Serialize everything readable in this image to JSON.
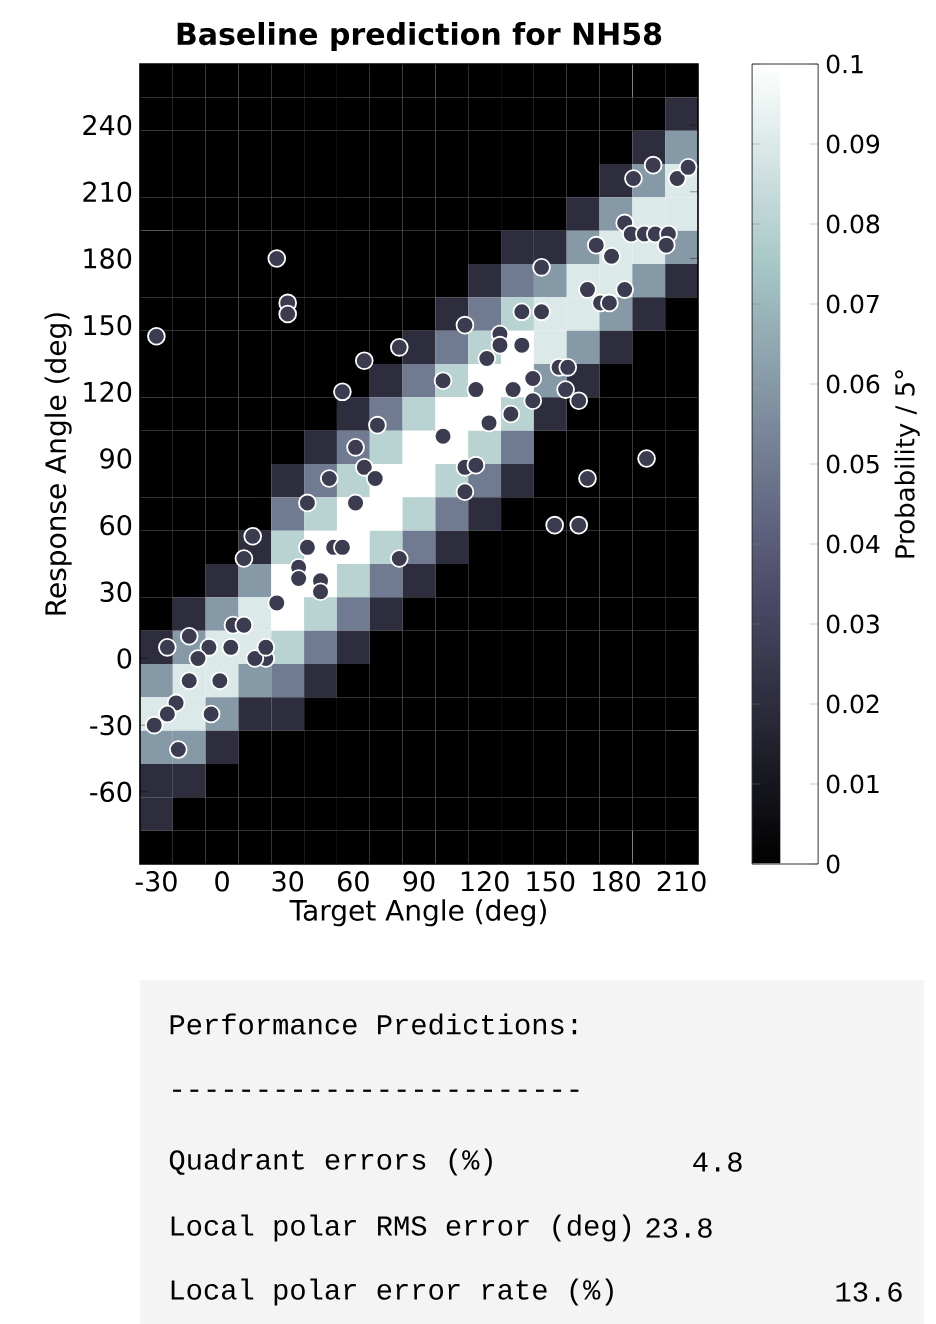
{
  "chart_data": [
    {
      "type": "heatmap",
      "clabel": "Probability / 5°",
      "categories": [
        null,
        null,
        null,
        null,
        null,
        null,
        null,
        null,
        null,
        null,
        null,
        null,
        null,
        null,
        null,
        null,
        null
      ],
      "y_categories": [
        null,
        null,
        null,
        null,
        null,
        null,
        null,
        null,
        null,
        null,
        null,
        null,
        null,
        null,
        null,
        null,
        null,
        null,
        null,
        null,
        null,
        null,
        null,
        null
      ],
      "cells": [
        [
          0,
          0,
          0,
          0,
          0,
          0,
          0,
          0,
          0,
          0,
          0,
          0,
          0,
          0,
          0,
          0,
          0
        ],
        [
          0,
          0,
          0,
          0,
          0,
          0,
          0,
          0,
          0,
          0,
          0,
          0,
          0,
          0,
          0,
          0,
          0.02
        ],
        [
          0,
          0,
          0,
          0,
          0,
          0,
          0,
          0,
          0,
          0,
          0,
          0,
          0,
          0,
          0,
          0.02,
          0.06
        ],
        [
          0,
          0,
          0,
          0,
          0,
          0,
          0,
          0,
          0,
          0,
          0,
          0,
          0,
          0,
          0.02,
          0.06,
          0.09
        ],
        [
          0,
          0,
          0,
          0,
          0,
          0,
          0,
          0,
          0,
          0,
          0,
          0,
          0,
          0.02,
          0.06,
          0.09,
          0.09
        ],
        [
          0,
          0,
          0,
          0,
          0,
          0,
          0,
          0,
          0,
          0,
          0,
          0.02,
          0.02,
          0.06,
          0.09,
          0.09,
          0.06
        ],
        [
          0,
          0,
          0,
          0,
          0,
          0,
          0,
          0,
          0,
          0,
          0.02,
          0.05,
          0.06,
          0.09,
          0.09,
          0.06,
          0.02
        ],
        [
          0,
          0,
          0,
          0,
          0,
          0,
          0,
          0,
          0,
          0.02,
          0.05,
          0.08,
          0.09,
          0.09,
          0.06,
          0.02,
          0
        ],
        [
          0,
          0,
          0,
          0,
          0,
          0,
          0,
          0,
          0.02,
          0.05,
          0.08,
          0.1,
          0.09,
          0.06,
          0.02,
          0,
          0
        ],
        [
          0,
          0,
          0,
          0,
          0,
          0,
          0,
          0.02,
          0.05,
          0.08,
          0.1,
          0.1,
          0.06,
          0.02,
          0,
          0,
          0
        ],
        [
          0,
          0,
          0,
          0,
          0,
          0,
          0.02,
          0.05,
          0.08,
          0.1,
          0.1,
          0.08,
          0.02,
          0,
          0,
          0,
          0
        ],
        [
          0,
          0,
          0,
          0,
          0,
          0.02,
          0.05,
          0.08,
          0.1,
          0.1,
          0.08,
          0.05,
          0,
          0,
          0,
          0,
          0
        ],
        [
          0,
          0,
          0,
          0,
          0.02,
          0.05,
          0.08,
          0.1,
          0.1,
          0.08,
          0.05,
          0.02,
          0,
          0,
          0,
          0,
          0
        ],
        [
          0,
          0,
          0,
          0,
          0.05,
          0.08,
          0.1,
          0.1,
          0.08,
          0.05,
          0.02,
          0,
          0,
          0,
          0,
          0,
          0
        ],
        [
          0,
          0,
          0,
          0.02,
          0.08,
          0.1,
          0.1,
          0.08,
          0.05,
          0.02,
          0,
          0,
          0,
          0,
          0,
          0,
          0
        ],
        [
          0,
          0,
          0.02,
          0.06,
          0.1,
          0.1,
          0.08,
          0.05,
          0.02,
          0,
          0,
          0,
          0,
          0,
          0,
          0,
          0
        ],
        [
          0,
          0.02,
          0.06,
          0.09,
          0.1,
          0.08,
          0.05,
          0.02,
          0,
          0,
          0,
          0,
          0,
          0,
          0,
          0,
          0
        ],
        [
          0.02,
          0.06,
          0.09,
          0.09,
          0.08,
          0.05,
          0.02,
          0,
          0,
          0,
          0,
          0,
          0,
          0,
          0,
          0,
          0
        ],
        [
          0.06,
          0.09,
          0.09,
          0.06,
          0.05,
          0.02,
          0,
          0,
          0,
          0,
          0,
          0,
          0,
          0,
          0,
          0,
          0
        ],
        [
          0.09,
          0.09,
          0.06,
          0.02,
          0.02,
          0,
          0,
          0,
          0,
          0,
          0,
          0,
          0,
          0,
          0,
          0,
          0
        ],
        [
          0.06,
          0.06,
          0.02,
          0,
          0,
          0,
          0,
          0,
          0,
          0,
          0,
          0,
          0,
          0,
          0,
          0,
          0
        ],
        [
          0.02,
          0.02,
          0,
          0,
          0,
          0,
          0,
          0,
          0,
          0,
          0,
          0,
          0,
          0,
          0,
          0,
          0
        ],
        [
          0.02,
          0,
          0,
          0,
          0,
          0,
          0,
          0,
          0,
          0,
          0,
          0,
          0,
          0,
          0,
          0,
          0
        ],
        [
          0,
          0,
          0,
          0,
          0,
          0,
          0,
          0,
          0,
          0,
          0,
          0,
          0,
          0,
          0,
          0,
          0
        ]
      ],
      "clim": [
        0,
        0.1
      ],
      "cticks": [
        0,
        0.01,
        0.02,
        0.03,
        0.04,
        0.05,
        0.06,
        0.07,
        0.08,
        0.09,
        0.1
      ]
    },
    {
      "type": "scatter",
      "title": "Baseline prediction for NH58",
      "xlabel": "Target Angle (deg)",
      "ylabel": "Response Angle (deg)",
      "xlim": [
        -37.5,
        217.5
      ],
      "ylim": [
        -92.5,
        267.5
      ],
      "xticks": [
        -30,
        0,
        30,
        60,
        90,
        120,
        150,
        180,
        210
      ],
      "yticks": [
        -60,
        -30,
        0,
        30,
        60,
        90,
        120,
        150,
        180,
        210,
        240
      ],
      "marker": "circle",
      "color": "#ffffff",
      "x": [
        -30,
        25,
        30,
        30,
        55,
        65,
        81,
        71,
        61,
        65,
        70,
        111,
        101,
        101,
        111,
        49,
        39,
        61,
        14,
        10,
        39,
        51,
        55,
        81,
        35,
        35,
        45,
        45,
        25,
        5,
        10,
        -15,
        -6,
        -25,
        4,
        -11,
        20,
        15,
        20,
        -15,
        -1,
        -21,
        -25,
        -5,
        -31,
        -20,
        188,
        197,
        208,
        213,
        184,
        187,
        193,
        198,
        204,
        203,
        171,
        178,
        146,
        167,
        173,
        177,
        184,
        137,
        146,
        127,
        127,
        137,
        121,
        142,
        154,
        158,
        116,
        133,
        157,
        142,
        163,
        122,
        132,
        194,
        167,
        116,
        111,
        152,
        163
      ],
      "values": [
        145,
        180,
        160,
        155,
        120,
        134,
        140,
        105,
        95,
        86,
        81,
        150,
        125,
        100,
        86,
        81,
        70,
        70,
        55,
        45,
        50,
        50,
        50,
        45,
        41,
        36,
        35,
        30,
        25,
        15,
        15,
        10,
        5,
        5,
        5,
        0,
        0,
        0,
        5,
        -10,
        -10,
        -20,
        -25,
        -25,
        -30,
        -41,
        216,
        222,
        216,
        221,
        196,
        191,
        191,
        191,
        191,
        186,
        186,
        181,
        176,
        166,
        160,
        160,
        166,
        156,
        156,
        146,
        141,
        141,
        135,
        126,
        131,
        131,
        121,
        121,
        121,
        116,
        116,
        106,
        110,
        90,
        81,
        87,
        75,
        60,
        60
      ],
      "annotations": [
        "Performance Predictions:",
        "------------------------",
        "Quadrant errors (%)",
        "4.8",
        "Local polar RMS error (deg)",
        "23.8",
        "Local polar error rate (%)",
        "13.6"
      ]
    }
  ]
}
